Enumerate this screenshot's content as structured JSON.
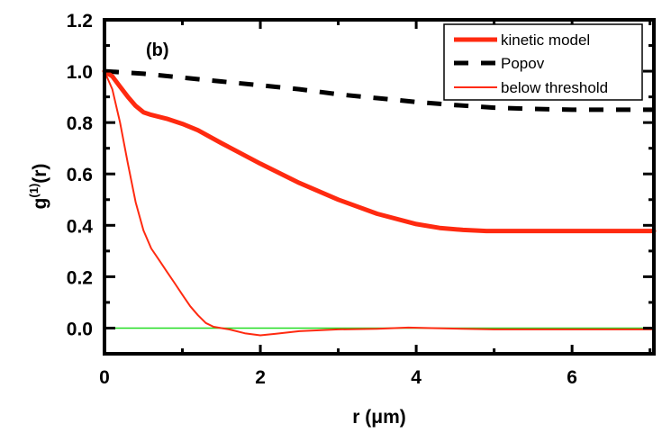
{
  "chart_data": {
    "type": "line",
    "title": "",
    "panel_label": "(b)",
    "xlabel": "r (μm)",
    "ylabel_main": "g",
    "ylabel_superscript": "(1)",
    "ylabel_suffix": "(r)",
    "xlim": [
      0,
      7.05
    ],
    "ylim": [
      -0.1,
      1.2
    ],
    "x_ticks": [
      0,
      2,
      4,
      6
    ],
    "x_tick_labels": [
      "0",
      "2",
      "4",
      "6"
    ],
    "x_minor_ticks": [
      1,
      3,
      5,
      7
    ],
    "y_ticks": [
      0.0,
      0.2,
      0.4,
      0.6,
      0.8,
      1.0,
      1.2
    ],
    "y_tick_labels": [
      "0.0",
      "0.2",
      "0.4",
      "0.6",
      "0.8",
      "1.0",
      "1.2"
    ],
    "y_minor_ticks": [
      -0.1,
      0.1,
      0.3,
      0.5,
      0.7,
      0.9,
      1.1
    ],
    "grid": false,
    "legend_position": "top-right",
    "reference_line": {
      "y": 0.0,
      "color": "#22dd22"
    },
    "series": [
      {
        "name": "kinetic model",
        "color": "#ff2a10",
        "style": "solid-thick",
        "x": [
          0,
          0.1,
          0.2,
          0.3,
          0.4,
          0.5,
          0.6,
          0.8,
          1.0,
          1.2,
          1.5,
          2.0,
          2.5,
          3.0,
          3.5,
          4.0,
          4.3,
          4.6,
          4.9,
          5.5,
          6.0,
          6.5,
          7.05
        ],
        "y": [
          1.0,
          0.98,
          0.94,
          0.9,
          0.865,
          0.84,
          0.83,
          0.815,
          0.795,
          0.77,
          0.72,
          0.64,
          0.565,
          0.5,
          0.445,
          0.405,
          0.39,
          0.382,
          0.378,
          0.378,
          0.378,
          0.378,
          0.378
        ]
      },
      {
        "name": "Popov",
        "color": "#000000",
        "style": "dashed",
        "x": [
          0,
          0.5,
          1.0,
          1.5,
          2.0,
          2.5,
          3.0,
          3.5,
          4.0,
          4.5,
          5.0,
          5.5,
          6.0,
          6.5,
          7.05
        ],
        "y": [
          1.0,
          0.99,
          0.975,
          0.96,
          0.945,
          0.93,
          0.91,
          0.895,
          0.88,
          0.868,
          0.858,
          0.853,
          0.85,
          0.85,
          0.85
        ]
      },
      {
        "name": "below threshold",
        "color": "#ff2a10",
        "style": "solid-thin",
        "x": [
          0,
          0.1,
          0.2,
          0.3,
          0.4,
          0.5,
          0.6,
          0.7,
          0.8,
          0.9,
          1.0,
          1.1,
          1.2,
          1.3,
          1.4,
          1.5,
          1.6,
          1.8,
          2.0,
          2.2,
          2.5,
          3.0,
          3.5,
          3.9,
          4.2,
          4.6,
          5.0,
          6.0,
          7.05
        ],
        "y": [
          1.0,
          0.93,
          0.8,
          0.64,
          0.49,
          0.38,
          0.31,
          0.265,
          0.22,
          0.175,
          0.13,
          0.085,
          0.05,
          0.02,
          0.005,
          0.0,
          -0.005,
          -0.02,
          -0.028,
          -0.022,
          -0.012,
          -0.005,
          -0.003,
          0.002,
          0.0,
          -0.003,
          -0.005,
          -0.005,
          -0.005
        ]
      }
    ]
  }
}
